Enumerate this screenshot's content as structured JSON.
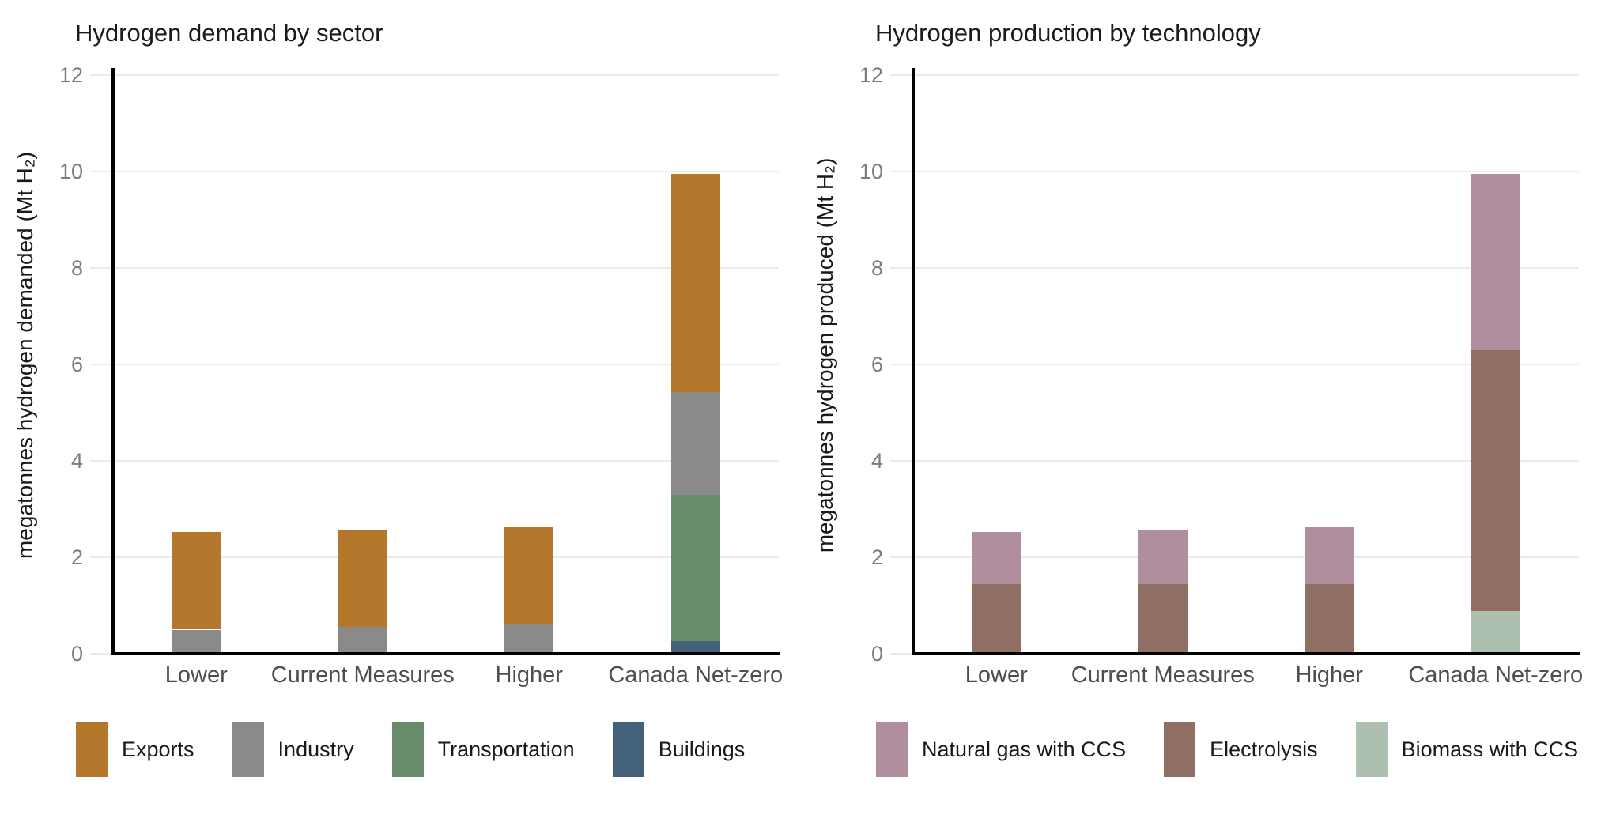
{
  "figure": {
    "background": "#ffffff",
    "axis_color": "#000000",
    "gridline_color": "#ebebeb"
  },
  "chart_data": [
    {
      "type": "bar",
      "stacked": true,
      "title": "Hydrogen demand by sector",
      "xlabel": "",
      "ylabel": "megatonnes hydrogen demanded (Mt H₂)",
      "categories": [
        "Lower",
        "Current Measures",
        "Higher",
        "Canada Net-zero"
      ],
      "series": [
        {
          "name": "Buildings",
          "color": "#44617a",
          "values": [
            0,
            0,
            0,
            0.26
          ]
        },
        {
          "name": "Transportation",
          "color": "#688b6a",
          "values": [
            0,
            0,
            0,
            3.04
          ]
        },
        {
          "name": "Industry",
          "color": "#8a8a8a",
          "values": [
            0.5,
            0.56,
            0.62,
            2.12
          ]
        },
        {
          "name": "Exports",
          "color": "#b5772b",
          "values": [
            2.03,
            2.02,
            2.01,
            4.53
          ]
        }
      ],
      "totals": [
        2.53,
        2.58,
        2.63,
        9.95
      ],
      "legend": [
        "Exports",
        "Industry",
        "Transportation",
        "Buildings"
      ],
      "legend_position": "bottom",
      "ylim": [
        0,
        12
      ],
      "yticks": [
        0,
        2,
        4,
        6,
        8,
        10,
        12
      ],
      "grid": true
    },
    {
      "type": "bar",
      "stacked": true,
      "title": "Hydrogen production by technology",
      "xlabel": "",
      "ylabel": "megatonnes hydrogen produced (Mt H₂)",
      "categories": [
        "Lower",
        "Current Measures",
        "Higher",
        "Canada Net-zero"
      ],
      "series": [
        {
          "name": "Biomass with CCS",
          "color": "#adc0af",
          "values": [
            0,
            0,
            0,
            0.89
          ]
        },
        {
          "name": "Electrolysis",
          "color": "#8f6f63",
          "values": [
            1.44,
            1.45,
            1.45,
            5.41
          ]
        },
        {
          "name": "Natural gas with CCS",
          "color": "#b08e9e",
          "values": [
            1.09,
            1.13,
            1.17,
            3.65
          ]
        }
      ],
      "totals": [
        2.53,
        2.58,
        2.62,
        9.95
      ],
      "legend": [
        "Natural gas with CCS",
        "Electrolysis",
        "Biomass with CCS"
      ],
      "legend_position": "bottom",
      "ylim": [
        0,
        12
      ],
      "yticks": [
        0,
        2,
        4,
        6,
        8,
        10,
        12
      ],
      "grid": true
    }
  ]
}
